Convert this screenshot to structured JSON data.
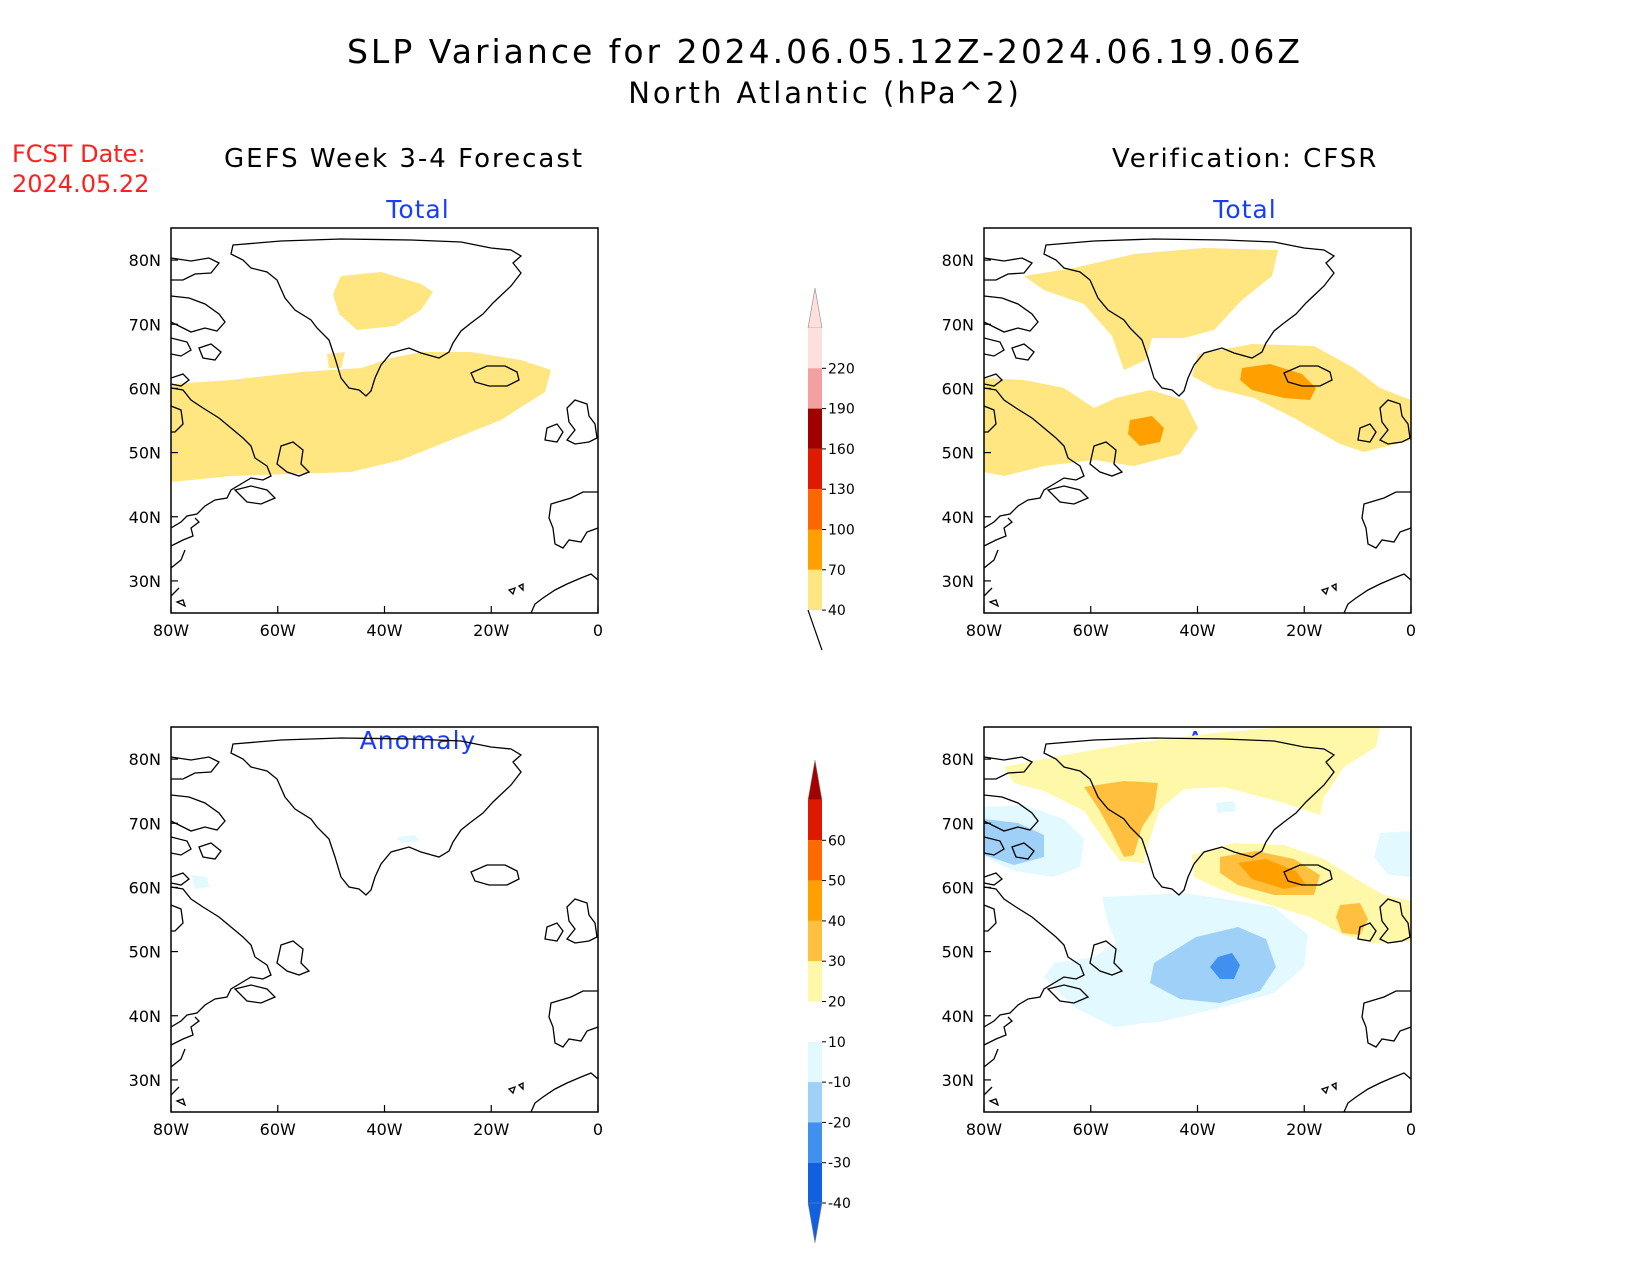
{
  "title": {
    "line1": "SLP Variance for 2024.06.05.12Z-2024.06.19.06Z",
    "line2": "North Atlantic (hPa^2)"
  },
  "fcst_date": {
    "label": "FCST Date:",
    "value": "2024.05.22"
  },
  "columns": {
    "left": "GEFS Week 3-4 Forecast",
    "right": "Verification: CFSR"
  },
  "panels": {
    "fc_total": "Total",
    "fc_anom": "Anomaly",
    "ver_total": "Total",
    "ver_anom": "Anomaly"
  },
  "map_axes": {
    "lon_labels": [
      "80W",
      "60W",
      "40W",
      "20W",
      "0"
    ],
    "lat_labels": [
      "80N",
      "70N",
      "60N",
      "50N",
      "40N",
      "30N"
    ],
    "lon_range": [
      -80,
      0
    ],
    "lat_range": [
      25,
      85
    ]
  },
  "colorbars": {
    "total": {
      "labels": [
        "220",
        "190",
        "160",
        "130",
        "100",
        "70",
        "40"
      ],
      "colors": [
        "#fde0dc",
        "#f3a0a0",
        "#a00000",
        "#e01a00",
        "#ff6600",
        "#ffa000",
        "#ffe680"
      ]
    },
    "anomaly": {
      "labels": [
        "60",
        "50",
        "40",
        "30",
        "20",
        "10",
        "-10",
        "-20",
        "-30",
        "-40"
      ],
      "colors": [
        "#a50000",
        "#dd1a00",
        "#ff6a00",
        "#ffa000",
        "#ffc040",
        "#fff8a8",
        "#ffffff",
        "#e2faff",
        "#9ed0f8",
        "#4090f0",
        "#1060e0"
      ]
    }
  },
  "fill_colors": {
    "c40_70": "#ffe680",
    "c70_100": "#ffa000",
    "a10_20": "#fff8a8",
    "a20_30": "#ffc040",
    "a30_40": "#ffa000",
    "an10_20": "#e2faff",
    "an20_30": "#9ed0f8",
    "an30_40": "#4090f0",
    "title_blue": "#1a3cff",
    "fcst_red": "#ff2020"
  }
}
